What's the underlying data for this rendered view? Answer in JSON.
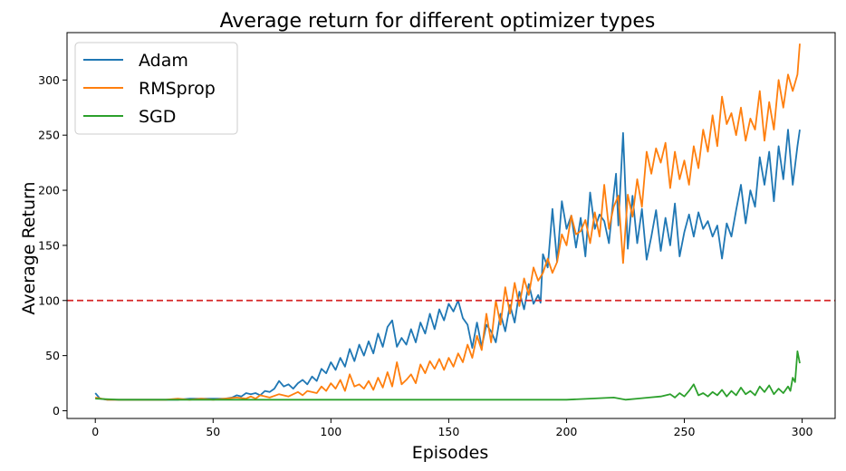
{
  "chart_data": {
    "type": "line",
    "title": "Average return for different optimizer types",
    "xlabel": "Episodes",
    "ylabel": "Average Return",
    "xlim": [
      -12,
      314
    ],
    "ylim": [
      -7,
      343
    ],
    "xticks": [
      0,
      50,
      100,
      150,
      200,
      250,
      300
    ],
    "yticks": [
      0,
      50,
      100,
      150,
      200,
      250,
      300
    ],
    "grid": false,
    "legend_position": "top-left",
    "reference_line": {
      "y": 100,
      "color": "#d62728",
      "style": "dashed"
    },
    "series": [
      {
        "name": "Adam",
        "color": "#1f77b4",
        "anchors": [
          [
            0,
            16
          ],
          [
            2,
            11
          ],
          [
            5,
            10
          ],
          [
            10,
            10
          ],
          [
            15,
            10
          ],
          [
            20,
            10
          ],
          [
            25,
            10
          ],
          [
            30,
            10
          ],
          [
            35,
            10
          ],
          [
            40,
            11
          ],
          [
            45,
            11
          ],
          [
            50,
            11
          ],
          [
            55,
            11
          ],
          [
            58,
            12
          ],
          [
            60,
            14
          ],
          [
            62,
            13
          ],
          [
            64,
            16
          ],
          [
            66,
            15
          ],
          [
            68,
            16
          ],
          [
            70,
            14
          ],
          [
            72,
            18
          ],
          [
            74,
            17
          ],
          [
            76,
            20
          ],
          [
            78,
            27
          ],
          [
            80,
            22
          ],
          [
            82,
            24
          ],
          [
            84,
            20
          ],
          [
            86,
            25
          ],
          [
            88,
            28
          ],
          [
            90,
            24
          ],
          [
            92,
            31
          ],
          [
            94,
            27
          ],
          [
            96,
            38
          ],
          [
            98,
            34
          ],
          [
            100,
            44
          ],
          [
            102,
            37
          ],
          [
            104,
            48
          ],
          [
            106,
            40
          ],
          [
            108,
            56
          ],
          [
            110,
            45
          ],
          [
            112,
            60
          ],
          [
            114,
            50
          ],
          [
            116,
            63
          ],
          [
            118,
            52
          ],
          [
            120,
            70
          ],
          [
            122,
            58
          ],
          [
            124,
            76
          ],
          [
            126,
            82
          ],
          [
            128,
            58
          ],
          [
            130,
            66
          ],
          [
            132,
            60
          ],
          [
            134,
            74
          ],
          [
            136,
            62
          ],
          [
            138,
            80
          ],
          [
            140,
            70
          ],
          [
            142,
            88
          ],
          [
            144,
            74
          ],
          [
            146,
            92
          ],
          [
            148,
            82
          ],
          [
            150,
            97
          ],
          [
            152,
            90
          ],
          [
            154,
            100
          ],
          [
            156,
            84
          ],
          [
            158,
            78
          ],
          [
            160,
            57
          ],
          [
            162,
            80
          ],
          [
            164,
            58
          ],
          [
            166,
            78
          ],
          [
            168,
            72
          ],
          [
            170,
            62
          ],
          [
            172,
            88
          ],
          [
            174,
            72
          ],
          [
            176,
            96
          ],
          [
            178,
            80
          ],
          [
            180,
            108
          ],
          [
            182,
            92
          ],
          [
            184,
            115
          ],
          [
            186,
            97
          ],
          [
            188,
            105
          ],
          [
            189,
            98
          ],
          [
            190,
            142
          ],
          [
            192,
            130
          ],
          [
            194,
            183
          ],
          [
            196,
            135
          ],
          [
            198,
            190
          ],
          [
            200,
            165
          ],
          [
            202,
            177
          ],
          [
            204,
            148
          ],
          [
            206,
            175
          ],
          [
            208,
            140
          ],
          [
            210,
            198
          ],
          [
            212,
            165
          ],
          [
            214,
            178
          ],
          [
            216,
            172
          ],
          [
            218,
            152
          ],
          [
            220,
            196
          ],
          [
            221,
            215
          ],
          [
            222,
            168
          ],
          [
            224,
            252
          ],
          [
            226,
            147
          ],
          [
            228,
            195
          ],
          [
            230,
            152
          ],
          [
            232,
            183
          ],
          [
            234,
            137
          ],
          [
            236,
            158
          ],
          [
            238,
            182
          ],
          [
            240,
            145
          ],
          [
            242,
            175
          ],
          [
            244,
            150
          ],
          [
            246,
            188
          ],
          [
            248,
            140
          ],
          [
            250,
            162
          ],
          [
            252,
            178
          ],
          [
            254,
            158
          ],
          [
            256,
            180
          ],
          [
            258,
            165
          ],
          [
            260,
            172
          ],
          [
            262,
            158
          ],
          [
            264,
            168
          ],
          [
            266,
            138
          ],
          [
            268,
            170
          ],
          [
            270,
            158
          ],
          [
            272,
            182
          ],
          [
            274,
            205
          ],
          [
            276,
            170
          ],
          [
            278,
            200
          ],
          [
            280,
            185
          ],
          [
            282,
            230
          ],
          [
            284,
            205
          ],
          [
            286,
            235
          ],
          [
            288,
            190
          ],
          [
            290,
            240
          ],
          [
            292,
            210
          ],
          [
            294,
            255
          ],
          [
            296,
            205
          ],
          [
            298,
            240
          ],
          [
            299,
            255
          ]
        ]
      },
      {
        "name": "RMSprop",
        "color": "#ff7f0e",
        "anchors": [
          [
            0,
            12
          ],
          [
            5,
            10
          ],
          [
            10,
            10
          ],
          [
            20,
            10
          ],
          [
            30,
            10
          ],
          [
            35,
            11
          ],
          [
            40,
            10
          ],
          [
            45,
            11
          ],
          [
            50,
            10
          ],
          [
            55,
            11
          ],
          [
            60,
            12
          ],
          [
            64,
            11
          ],
          [
            66,
            13
          ],
          [
            68,
            11
          ],
          [
            70,
            14
          ],
          [
            74,
            12
          ],
          [
            78,
            15
          ],
          [
            82,
            13
          ],
          [
            86,
            17
          ],
          [
            88,
            14
          ],
          [
            90,
            18
          ],
          [
            94,
            16
          ],
          [
            96,
            22
          ],
          [
            98,
            18
          ],
          [
            100,
            25
          ],
          [
            102,
            20
          ],
          [
            104,
            28
          ],
          [
            106,
            18
          ],
          [
            108,
            33
          ],
          [
            110,
            22
          ],
          [
            112,
            24
          ],
          [
            114,
            20
          ],
          [
            116,
            27
          ],
          [
            118,
            19
          ],
          [
            120,
            30
          ],
          [
            122,
            21
          ],
          [
            124,
            35
          ],
          [
            126,
            22
          ],
          [
            128,
            44
          ],
          [
            130,
            24
          ],
          [
            132,
            28
          ],
          [
            134,
            33
          ],
          [
            136,
            25
          ],
          [
            138,
            42
          ],
          [
            140,
            34
          ],
          [
            142,
            45
          ],
          [
            144,
            38
          ],
          [
            146,
            47
          ],
          [
            148,
            37
          ],
          [
            150,
            48
          ],
          [
            152,
            40
          ],
          [
            154,
            52
          ],
          [
            156,
            44
          ],
          [
            158,
            60
          ],
          [
            160,
            48
          ],
          [
            162,
            68
          ],
          [
            164,
            55
          ],
          [
            166,
            88
          ],
          [
            168,
            62
          ],
          [
            170,
            100
          ],
          [
            172,
            78
          ],
          [
            174,
            112
          ],
          [
            176,
            88
          ],
          [
            178,
            116
          ],
          [
            180,
            95
          ],
          [
            182,
            120
          ],
          [
            184,
            105
          ],
          [
            186,
            130
          ],
          [
            188,
            118
          ],
          [
            190,
            125
          ],
          [
            192,
            138
          ],
          [
            194,
            125
          ],
          [
            196,
            135
          ],
          [
            198,
            160
          ],
          [
            200,
            150
          ],
          [
            202,
            177
          ],
          [
            204,
            160
          ],
          [
            206,
            163
          ],
          [
            208,
            173
          ],
          [
            210,
            152
          ],
          [
            212,
            180
          ],
          [
            214,
            158
          ],
          [
            216,
            205
          ],
          [
            218,
            165
          ],
          [
            220,
            185
          ],
          [
            222,
            195
          ],
          [
            224,
            134
          ],
          [
            226,
            196
          ],
          [
            228,
            176
          ],
          [
            230,
            210
          ],
          [
            232,
            185
          ],
          [
            234,
            235
          ],
          [
            236,
            215
          ],
          [
            238,
            238
          ],
          [
            240,
            225
          ],
          [
            242,
            243
          ],
          [
            244,
            202
          ],
          [
            246,
            235
          ],
          [
            248,
            210
          ],
          [
            250,
            227
          ],
          [
            252,
            205
          ],
          [
            254,
            240
          ],
          [
            256,
            220
          ],
          [
            258,
            255
          ],
          [
            260,
            235
          ],
          [
            262,
            268
          ],
          [
            264,
            240
          ],
          [
            266,
            285
          ],
          [
            268,
            260
          ],
          [
            270,
            270
          ],
          [
            272,
            250
          ],
          [
            274,
            275
          ],
          [
            276,
            245
          ],
          [
            278,
            265
          ],
          [
            280,
            255
          ],
          [
            282,
            290
          ],
          [
            284,
            245
          ],
          [
            286,
            280
          ],
          [
            288,
            255
          ],
          [
            290,
            300
          ],
          [
            292,
            275
          ],
          [
            294,
            305
          ],
          [
            296,
            290
          ],
          [
            298,
            305
          ],
          [
            299,
            333
          ]
        ]
      },
      {
        "name": "SGD",
        "color": "#2ca02c",
        "anchors": [
          [
            0,
            11
          ],
          [
            10,
            10
          ],
          [
            20,
            10
          ],
          [
            40,
            10
          ],
          [
            60,
            10
          ],
          [
            80,
            10
          ],
          [
            100,
            10
          ],
          [
            120,
            10
          ],
          [
            140,
            10
          ],
          [
            160,
            10
          ],
          [
            180,
            10
          ],
          [
            200,
            10
          ],
          [
            210,
            11
          ],
          [
            220,
            12
          ],
          [
            225,
            10
          ],
          [
            230,
            11
          ],
          [
            235,
            12
          ],
          [
            240,
            13
          ],
          [
            244,
            15
          ],
          [
            246,
            12
          ],
          [
            248,
            16
          ],
          [
            250,
            13
          ],
          [
            252,
            18
          ],
          [
            254,
            24
          ],
          [
            256,
            14
          ],
          [
            258,
            16
          ],
          [
            260,
            13
          ],
          [
            262,
            17
          ],
          [
            264,
            14
          ],
          [
            266,
            19
          ],
          [
            268,
            13
          ],
          [
            270,
            18
          ],
          [
            272,
            14
          ],
          [
            274,
            21
          ],
          [
            276,
            15
          ],
          [
            278,
            18
          ],
          [
            280,
            14
          ],
          [
            282,
            22
          ],
          [
            284,
            17
          ],
          [
            286,
            23
          ],
          [
            288,
            15
          ],
          [
            290,
            20
          ],
          [
            292,
            16
          ],
          [
            294,
            22
          ],
          [
            295,
            18
          ],
          [
            296,
            30
          ],
          [
            297,
            26
          ],
          [
            298,
            54
          ],
          [
            299,
            43
          ]
        ]
      }
    ]
  }
}
